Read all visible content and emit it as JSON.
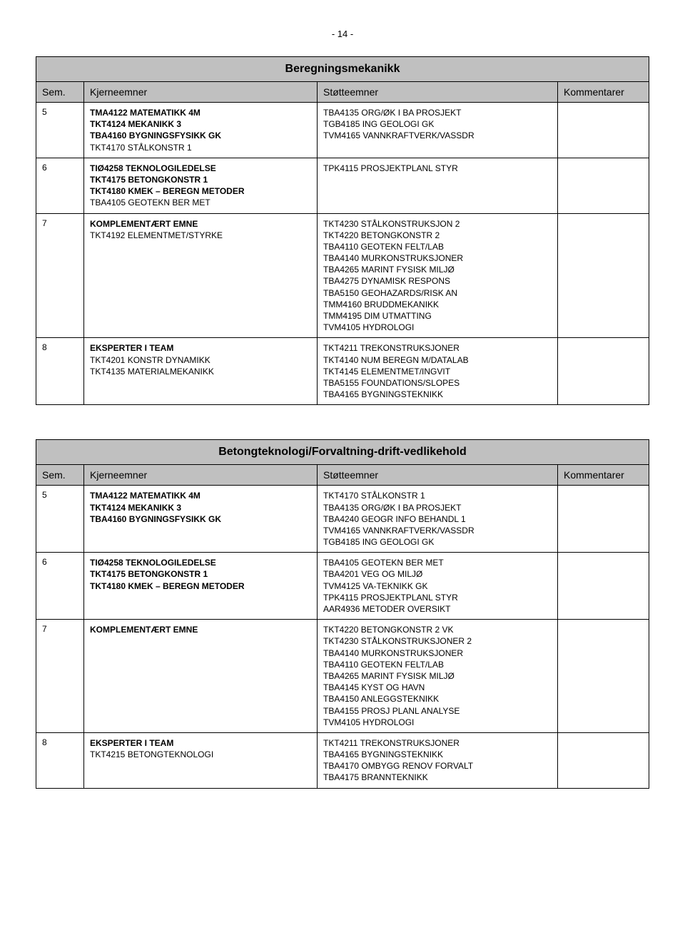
{
  "page_number": "- 14 -",
  "tables": [
    {
      "title": "Beregningsmekanikk",
      "headers": [
        "Sem.",
        "Kjerneemner",
        "Støtteemner",
        "Kommentarer"
      ],
      "rows": [
        {
          "sem": "5",
          "kjerne": [
            {
              "t": "TMA4122 MATEMATIKK 4M",
              "b": true
            },
            {
              "t": "TKT4124 MEKANIKK 3",
              "b": true
            },
            {
              "t": "TBA4160 BYGNINGSFYSIKK GK",
              "b": true
            },
            {
              "t": "TKT4170 STÅLKONSTR 1",
              "b": false
            }
          ],
          "stotte": [
            {
              "t": "TBA4135 ORG/ØK I BA PROSJEKT",
              "b": false
            },
            {
              "t": "TGB4185 ING GEOLOGI GK",
              "b": false
            },
            {
              "t": "TVM4165 VANNKRAFTVERK/VASSDR",
              "b": false
            }
          ],
          "komm": []
        },
        {
          "sem": "6",
          "kjerne": [
            {
              "t": "TIØ4258 TEKNOLOGILEDELSE",
              "b": true
            },
            {
              "t": "TKT4175 BETONGKONSTR 1",
              "b": true
            },
            {
              "t": "TKT4180 KMEK – BEREGN METODER",
              "b": true
            },
            {
              "t": "TBA4105 GEOTEKN BER MET",
              "b": false
            }
          ],
          "stotte": [
            {
              "t": "TPK4115 PROSJEKTPLANL STYR",
              "b": false
            }
          ],
          "komm": []
        },
        {
          "sem": "7",
          "kjerne": [
            {
              "t": "KOMPLEMENTÆRT EMNE",
              "b": true
            },
            {
              "t": "TKT4192 ELEMENTMET/STYRKE",
              "b": false
            }
          ],
          "stotte": [
            {
              "t": "TKT4230 STÅLKONSTRUKSJON 2",
              "b": false
            },
            {
              "t": "TKT4220 BETONGKONSTR 2",
              "b": false
            },
            {
              "t": "TBA4110 GEOTEKN FELT/LAB",
              "b": false
            },
            {
              "t": "TBA4140 MURKONSTRUKSJONER",
              "b": false
            },
            {
              "t": "TBA4265 MARINT FYSISK MILJØ",
              "b": false
            },
            {
              "t": "TBA4275 DYNAMISK RESPONS",
              "b": false
            },
            {
              "t": "TBA5150 GEOHAZARDS/RISK AN",
              "b": false
            },
            {
              "t": "TMM4160 BRUDDMEKANIKK",
              "b": false
            },
            {
              "t": "TMM4195 DIM UTMATTING",
              "b": false
            },
            {
              "t": "TVM4105 HYDROLOGI",
              "b": false
            }
          ],
          "komm": []
        },
        {
          "sem": "8",
          "kjerne": [
            {
              "t": "EKSPERTER I TEAM",
              "b": true
            },
            {
              "t": "TKT4201 KONSTR DYNAMIKK",
              "b": false
            },
            {
              "t": "TKT4135 MATERIALMEKANIKK",
              "b": false
            }
          ],
          "stotte": [
            {
              "t": "TKT4211 TREKONSTRUKSJONER",
              "b": false
            },
            {
              "t": "TKT4140 NUM BEREGN M/DATALAB",
              "b": false
            },
            {
              "t": "TKT4145 ELEMENTMET/INGVIT",
              "b": false
            },
            {
              "t": "TBA5155 FOUNDATIONS/SLOPES",
              "b": false
            },
            {
              "t": "TBA4165 BYGNINGSTEKNIKK",
              "b": false
            }
          ],
          "komm": []
        }
      ]
    },
    {
      "title": "Betongteknologi/Forvaltning-drift-vedlikehold",
      "headers": [
        "Sem.",
        "Kjerneemner",
        "Støtteemner",
        "Kommentarer"
      ],
      "rows": [
        {
          "sem": "5",
          "kjerne": [
            {
              "t": "TMA4122 MATEMATIKK 4M",
              "b": true
            },
            {
              "t": "TKT4124 MEKANIKK 3",
              "b": true
            },
            {
              "t": "TBA4160 BYGNINGSFYSIKK GK",
              "b": true
            }
          ],
          "stotte": [
            {
              "t": "TKT4170 STÅLKONSTR 1",
              "b": false
            },
            {
              "t": "TBA4135 ORG/ØK I BA PROSJEKT",
              "b": false
            },
            {
              "t": "TBA4240 GEOGR INFO BEHANDL 1",
              "b": false
            },
            {
              "t": "TVM4165 VANNKRAFTVERK/VASSDR",
              "b": false
            },
            {
              "t": "TGB4185 ING GEOLOGI GK",
              "b": false
            }
          ],
          "komm": []
        },
        {
          "sem": "6",
          "kjerne": [
            {
              "t": "TIØ4258 TEKNOLOGILEDELSE",
              "b": true
            },
            {
              "t": "TKT4175 BETONGKONSTR 1",
              "b": true
            },
            {
              "t": "TKT4180 KMEK – BEREGN METODER",
              "b": true
            }
          ],
          "stotte": [
            {
              "t": "TBA4105 GEOTEKN BER MET",
              "b": false
            },
            {
              "t": "TBA4201 VEG OG MILJØ",
              "b": false
            },
            {
              "t": "TVM4125 VA-TEKNIKK GK",
              "b": false
            },
            {
              "t": "TPK4115 PROSJEKTPLANL STYR",
              "b": false
            },
            {
              "t": "AAR4936 METODER OVERSIKT",
              "b": false
            }
          ],
          "komm": []
        },
        {
          "sem": "7",
          "kjerne": [
            {
              "t": "KOMPLEMENTÆRT EMNE",
              "b": true
            }
          ],
          "stotte": [
            {
              "t": "TKT4220 BETONGKONSTR 2 VK",
              "b": false
            },
            {
              "t": "TKT4230 STÅLKONSTRUKSJONER 2",
              "b": false
            },
            {
              "t": "TBA4140 MURKONSTRUKSJONER",
              "b": false
            },
            {
              "t": "TBA4110 GEOTEKN FELT/LAB",
              "b": false
            },
            {
              "t": "TBA4265 MARINT FYSISK MILJØ",
              "b": false
            },
            {
              "t": "TBA4145 KYST OG HAVN",
              "b": false
            },
            {
              "t": "TBA4150 ANLEGGSTEKNIKK",
              "b": false
            },
            {
              "t": "TBA4155 PROSJ PLANL ANALYSE",
              "b": false
            },
            {
              "t": "TVM4105 HYDROLOGI",
              "b": false
            }
          ],
          "komm": []
        },
        {
          "sem": "8",
          "kjerne": [
            {
              "t": "EKSPERTER I TEAM",
              "b": true
            },
            {
              "t": "TKT4215 BETONGTEKNOLOGI",
              "b": false
            }
          ],
          "stotte": [
            {
              "t": "TKT4211 TREKONSTRUKSJONER",
              "b": false
            },
            {
              "t": "TBA4165 BYGNINGSTEKNIKK",
              "b": false
            },
            {
              "t": "TBA4170 OMBYGG RENOV FORVALT",
              "b": false
            },
            {
              "t": "TBA4175 BRANNTEKNIKK",
              "b": false
            }
          ],
          "komm": []
        }
      ]
    }
  ]
}
